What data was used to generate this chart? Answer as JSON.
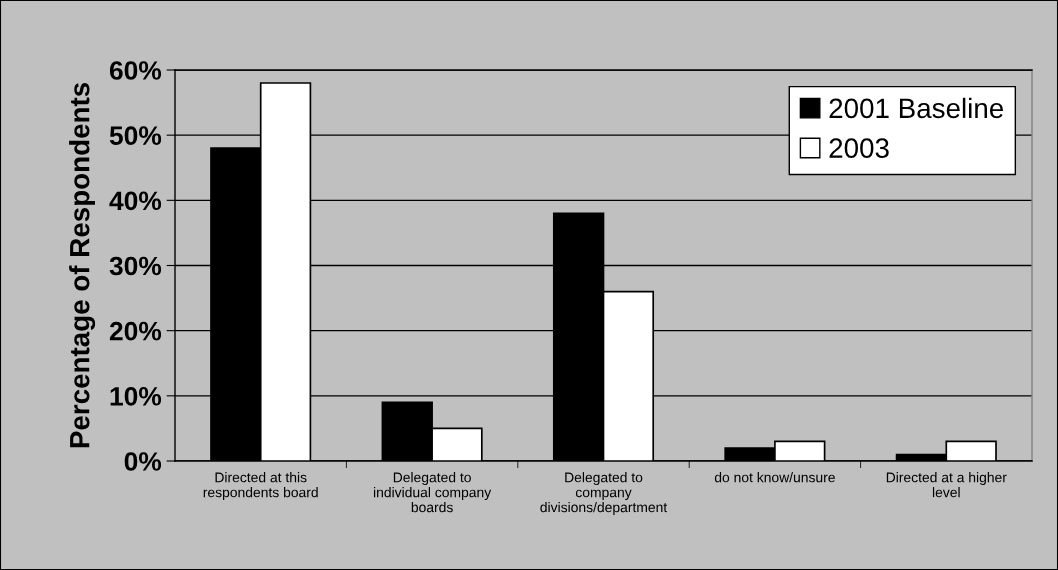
{
  "chart_data": {
    "type": "bar",
    "ylabel": "Percentage of Respondents",
    "categories": [
      "Directed at this\nrespondents board",
      "Delegated to\nindividual company\nboards",
      "Delegated to\ncompany\ndivisions/department",
      "do not know/unsure",
      "Directed at a higher\nlevel"
    ],
    "series": [
      {
        "name": "2001 Baseline",
        "color": "#000000",
        "values": [
          48,
          9,
          38,
          2,
          1
        ]
      },
      {
        "name": "2003",
        "color": "#ffffff",
        "values": [
          58,
          5,
          26,
          3,
          3
        ]
      }
    ],
    "ylim": [
      0,
      60
    ],
    "yticks": [
      {
        "value": 0,
        "label": "0%"
      },
      {
        "value": 10,
        "label": "10%"
      },
      {
        "value": 20,
        "label": "20%"
      },
      {
        "value": 30,
        "label": "30%"
      },
      {
        "value": 40,
        "label": "40%"
      },
      {
        "value": 50,
        "label": "50%"
      },
      {
        "value": 60,
        "label": "60%"
      }
    ],
    "grid": "y",
    "legend": "top right"
  }
}
